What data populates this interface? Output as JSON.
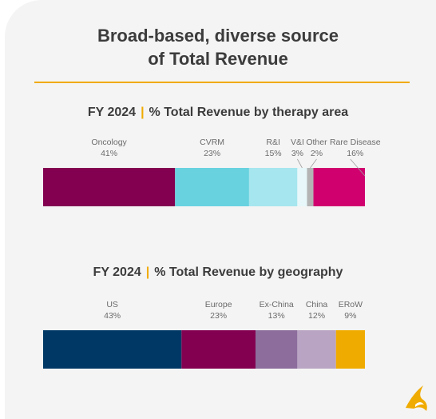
{
  "title_line1": "Broad-based, diverse source",
  "title_line2": "of Total Revenue",
  "chart_data": [
    {
      "type": "bar",
      "orientation": "horizontal-stacked",
      "heading_year": "FY 2024",
      "heading_separator": "|",
      "heading_text": "% Total Revenue by therapy area",
      "categories": [
        "Oncology",
        "CVRM",
        "R&I",
        "V&I",
        "Other",
        "Rare Disease"
      ],
      "values": [
        41,
        23,
        15,
        3,
        2,
        16
      ],
      "value_labels": [
        "41%",
        "23%",
        "15%",
        "3%",
        "2%",
        "16%"
      ],
      "colors": [
        "#830051",
        "#68d2df",
        "#a6e6ee",
        "#e8f8fa",
        "#b4b4b4",
        "#d0006f"
      ]
    },
    {
      "type": "bar",
      "orientation": "horizontal-stacked",
      "heading_year": "FY 2024",
      "heading_separator": "|",
      "heading_text": "% Total Revenue by geography",
      "categories": [
        "US",
        "Europe",
        "Ex-China",
        "China",
        "ERoW"
      ],
      "values": [
        43,
        23,
        13,
        12,
        9
      ],
      "value_labels": [
        "43%",
        "23%",
        "13%",
        "12%",
        "9%"
      ],
      "colors": [
        "#003865",
        "#830051",
        "#8c6d9c",
        "#b9a4c3",
        "#f0ab00"
      ]
    }
  ],
  "logo": {
    "icon": "astrazeneca-logo-icon",
    "color": "#f0ab00"
  }
}
